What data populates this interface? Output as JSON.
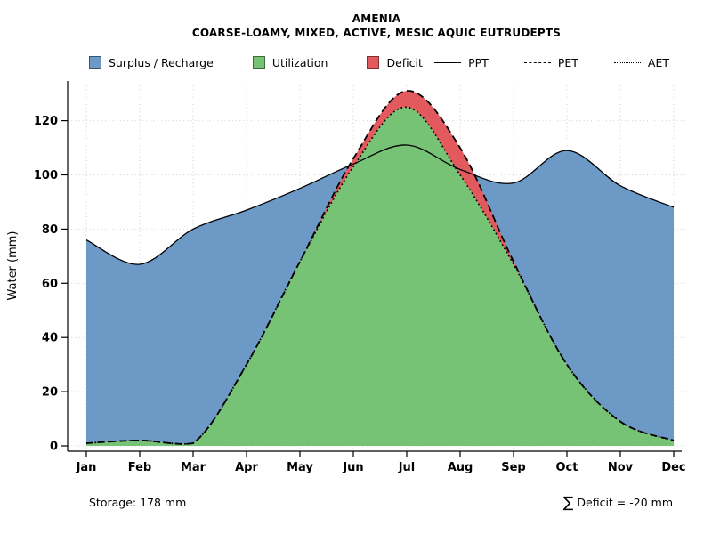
{
  "title": "AMENIA",
  "subtitle": "COARSE-LOAMY, MIXED, ACTIVE, MESIC AQUIC EUTRUDEPTS",
  "legend": {
    "fills": [
      {
        "label": "Surplus / Recharge"
      },
      {
        "label": "Utilization"
      },
      {
        "label": "Deficit"
      }
    ],
    "lines": [
      {
        "label": "PPT",
        "style": "solid"
      },
      {
        "label": "PET",
        "style": "dashed"
      },
      {
        "label": "AET",
        "style": "dotted"
      }
    ]
  },
  "footer": {
    "storage": "Storage: 178 mm",
    "sigma": "∑",
    "deficit_text": "Deficit = -20 mm"
  },
  "chart_data": {
    "type": "area",
    "title": "AMENIA",
    "subtitle": "COARSE-LOAMY, MIXED, ACTIVE, MESIC AQUIC EUTRUDEPTS",
    "x": [
      "Jan",
      "Feb",
      "Mar",
      "Apr",
      "May",
      "Jun",
      "Jul",
      "Aug",
      "Sep",
      "Oct",
      "Nov",
      "Dec"
    ],
    "ylabel": "Water (mm)",
    "ylim": [
      0,
      133
    ],
    "yticks": [
      0,
      20,
      40,
      60,
      80,
      100,
      120
    ],
    "grid": true,
    "legend_position": "top",
    "series": [
      {
        "name": "PPT",
        "style": "solid",
        "values": [
          76,
          67,
          80,
          87,
          95,
          104,
          111,
          102,
          97,
          109,
          96,
          88
        ]
      },
      {
        "name": "PET",
        "style": "dashed",
        "values": [
          1,
          2,
          1,
          30,
          68,
          106,
          131,
          110,
          68,
          30,
          9,
          2
        ]
      },
      {
        "name": "AET",
        "style": "dotted",
        "values": [
          1,
          2,
          1,
          30,
          68,
          103,
          125,
          100,
          67,
          30,
          9,
          2
        ]
      }
    ],
    "areas": [
      {
        "name": "Surplus / Recharge",
        "color": "#6C99C6",
        "definition": "between PPT and PET where PPT > PET"
      },
      {
        "name": "Utilization",
        "color": "#76C376",
        "definition": "under AET"
      },
      {
        "name": "Deficit",
        "color": "#E25A5E",
        "definition": "between PET and AET where PET > AET"
      }
    ],
    "annotations": {
      "storage_mm": 178,
      "deficit_sum_mm": -20
    }
  }
}
